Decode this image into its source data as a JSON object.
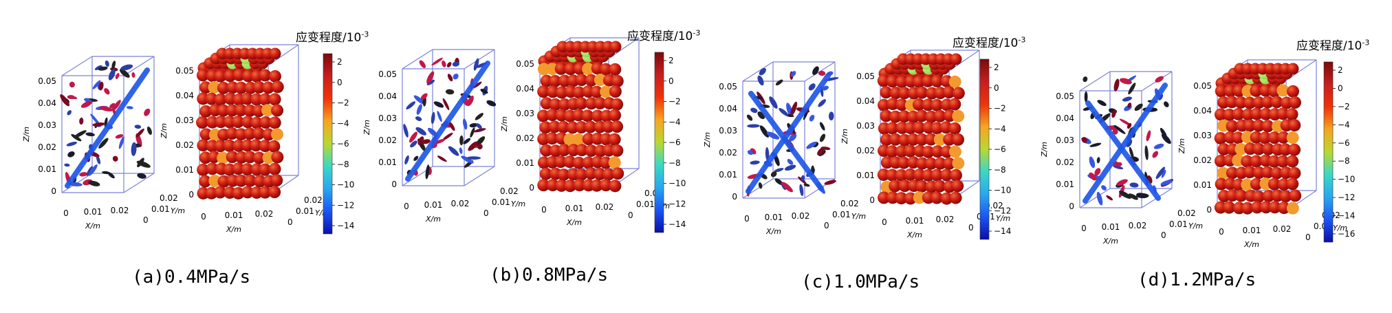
{
  "colors": {
    "box": "#7b82d6",
    "band": "#1f57e8",
    "sphere_main": "#cc1a12",
    "sphere_highlight": "#f06a3a",
    "sphere_green": "#8fd84a",
    "sphere_orange": "#f29a2e",
    "colormap": [
      "#7a0a0a",
      "#c81e1e",
      "#f0320a",
      "#f7a520",
      "#b9d830",
      "#3bd8c6",
      "#27a8ef",
      "#1b55f5",
      "#0b0fa8"
    ]
  },
  "panels": [
    {
      "caption": "(a)0.4MPa/s",
      "colorbar_title": "应变程度/10",
      "colorbar_exp": "-3",
      "colorbar_ticks": [
        "2",
        "0",
        "−2",
        "−4",
        "−6",
        "−8",
        "−10",
        "−12",
        "−14"
      ],
      "band_count": 1,
      "z_label": "Z/m",
      "x_label": "X/m",
      "y_label": "Y/m",
      "z_ticks": [
        "0.05",
        "0.04",
        "0.03",
        "0.02",
        "0.01",
        "0"
      ],
      "x_ticks": [
        "0",
        "0.01",
        "0.02"
      ],
      "y_ticks": [
        "0.02",
        "0.01",
        "0"
      ]
    },
    {
      "caption": "(b)0.8MPa/s",
      "colorbar_title": "应变程度/10",
      "colorbar_exp": "-3",
      "colorbar_ticks": [
        "2",
        "0",
        "−2",
        "−4",
        "−6",
        "−8",
        "−10",
        "−12",
        "−14"
      ],
      "band_count": 1,
      "z_label": "Z/m",
      "x_label": "X/m",
      "y_label": "Y/m",
      "z_ticks": [
        "0.05",
        "0.04",
        "0.03",
        "0.02",
        "0.01",
        "0"
      ],
      "x_ticks": [
        "0",
        "0.01",
        "0.02"
      ],
      "y_ticks": [
        "0.02",
        "0.01",
        "0"
      ]
    },
    {
      "caption": "(c)1.0MPa/s",
      "colorbar_title": "应变程度/10",
      "colorbar_exp": "-3",
      "colorbar_ticks": [
        "2",
        "0",
        "−2",
        "−4",
        "−6",
        "−8",
        "−10",
        "−12",
        "−14"
      ],
      "band_count": 2,
      "z_label": "Z/m",
      "x_label": "X/m",
      "y_label": "Y/m",
      "z_ticks": [
        "0.05",
        "0.04",
        "0.03",
        "0.02",
        "0.01",
        "0"
      ],
      "x_ticks": [
        "0",
        "0.01",
        "0.02"
      ],
      "y_ticks": [
        "0.02",
        "0.01",
        "0"
      ]
    },
    {
      "caption": "(d)1.2MPa/s",
      "colorbar_title": "应变程度/10",
      "colorbar_exp": "-3",
      "colorbar_ticks": [
        "2",
        "0",
        "−2",
        "−4",
        "−6",
        "−8",
        "−10",
        "−12",
        "−14",
        "−16"
      ],
      "band_count": 2,
      "z_label": "Z/m",
      "x_label": "X/m",
      "y_label": "Y/m",
      "z_ticks": [
        "0.05",
        "0.04",
        "0.03",
        "0.02",
        "0.01",
        "0"
      ],
      "x_ticks": [
        "0",
        "0.01",
        "0.02"
      ],
      "y_ticks": [
        "0.02",
        "0.01",
        "0"
      ]
    }
  ]
}
